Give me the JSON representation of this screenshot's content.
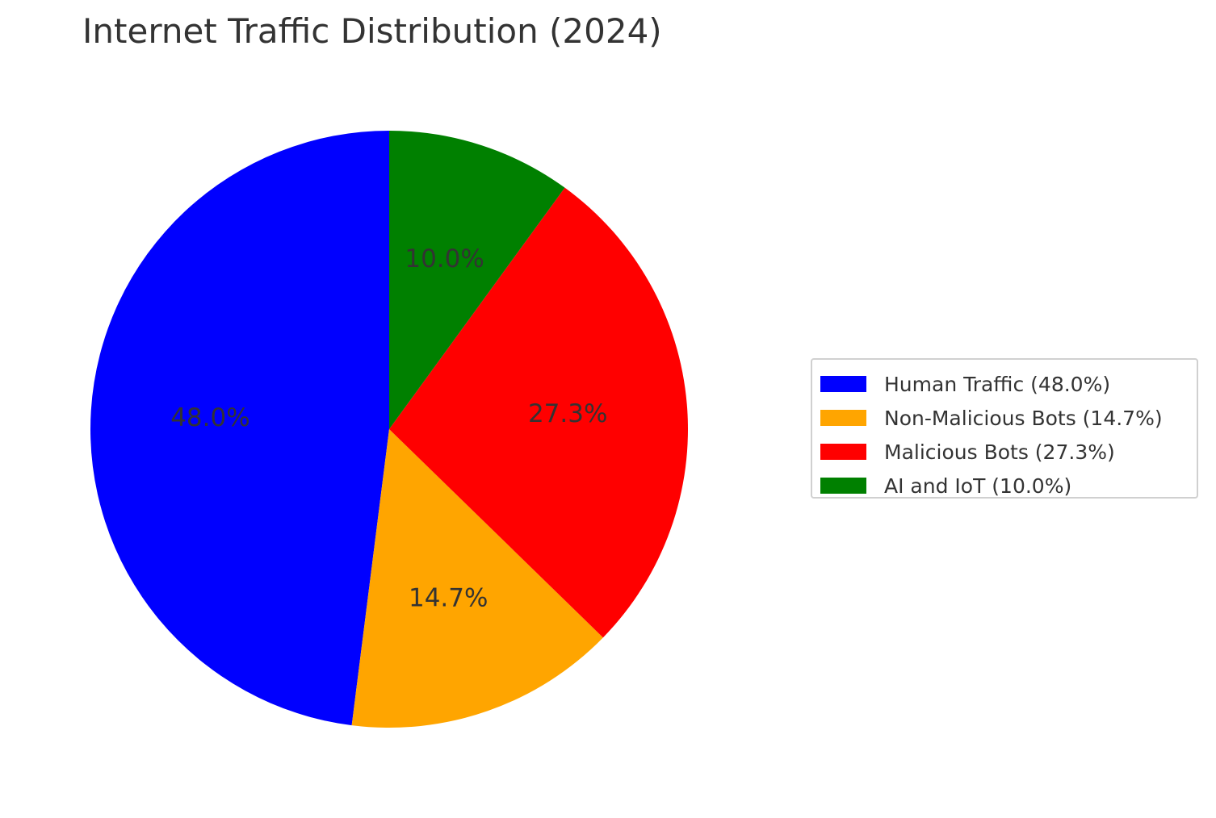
{
  "chart_data": {
    "type": "pie",
    "title": "Internet Traffic Distribution (2024)",
    "slices": [
      {
        "label": "Human Traffic",
        "value": 48.0,
        "value_label": "48.0%",
        "legend": "Human Traffic (48.0%)",
        "color": "#0000ff"
      },
      {
        "label": "Non-Malicious Bots",
        "value": 14.7,
        "value_label": "14.7%",
        "legend": "Non-Malicious Bots (14.7%)",
        "color": "#ffa500"
      },
      {
        "label": "Malicious Bots",
        "value": 27.3,
        "value_label": "27.3%",
        "legend": "Malicious Bots (27.3%)",
        "color": "#ff0000"
      },
      {
        "label": "AI and IoT",
        "value": 10.0,
        "value_label": "10.0%",
        "legend": "AI and IoT (10.0%)",
        "color": "#008000"
      }
    ],
    "start_angle_deg": 90,
    "direction": "counterclockwise",
    "legend_placement": "center-right"
  }
}
